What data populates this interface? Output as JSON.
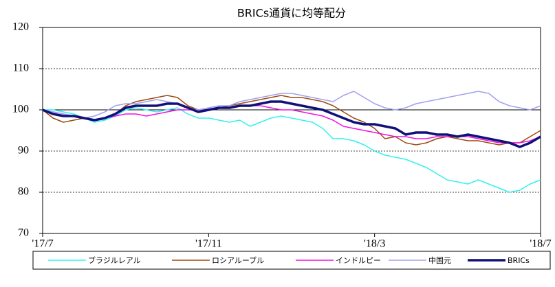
{
  "chart_data": {
    "type": "line",
    "title": "BRICs通貨に均等配分",
    "x": [
      0,
      0.25,
      0.5,
      0.75,
      1,
      1.25,
      1.5,
      1.75,
      2,
      2.25,
      2.5,
      2.75,
      3,
      3.25,
      3.5,
      3.75,
      4,
      4.25,
      4.5,
      4.75,
      5,
      5.25,
      5.5,
      5.75,
      6,
      6.25,
      6.5,
      6.75,
      7,
      7.25,
      7.5,
      7.75,
      8,
      8.25,
      8.5,
      8.75,
      9,
      9.25,
      9.5,
      9.75,
      10,
      10.25,
      10.5,
      10.75,
      11,
      11.25,
      11.5,
      11.75,
      12
    ],
    "xlim": [
      0,
      12
    ],
    "xticks": [
      {
        "value": 0,
        "label": "'17/7"
      },
      {
        "value": 4,
        "label": "'17/11"
      },
      {
        "value": 8,
        "label": "'18/3"
      },
      {
        "value": 12,
        "label": "'18/7"
      }
    ],
    "ylim": [
      70,
      120
    ],
    "yticks": [
      70,
      80,
      90,
      100,
      110,
      120
    ],
    "grid": true,
    "hline": 100,
    "legend": "bottom",
    "series": [
      {
        "name": "ブラジルレアル",
        "color": "#33f0f0",
        "line_width": 1.5,
        "values": [
          100,
          100,
          99.5,
          99,
          98,
          97,
          97.5,
          98.5,
          100,
          100.5,
          100,
          99.5,
          100,
          100.5,
          99,
          98,
          98,
          97.5,
          97,
          97.5,
          96,
          97,
          98,
          98.5,
          98,
          97.5,
          97,
          95.5,
          93,
          93,
          92.5,
          91.5,
          90,
          89,
          88.5,
          88,
          87,
          86,
          84.5,
          83,
          82.5,
          82,
          83,
          82,
          81,
          80,
          80.5,
          82,
          83
        ]
      },
      {
        "name": "ロシアルーブル",
        "color": "#9c4a10",
        "line_width": 1.5,
        "values": [
          100,
          98,
          97,
          97.5,
          98,
          97.5,
          98,
          99,
          101,
          102,
          102.5,
          103,
          103.5,
          103,
          101,
          100,
          100,
          100.5,
          101,
          101.5,
          102,
          102.5,
          103,
          103.5,
          103,
          103,
          102.5,
          102,
          101,
          99.5,
          98,
          97,
          95.5,
          93,
          93.5,
          92,
          91.5,
          92,
          93,
          93.5,
          93,
          92.5,
          92.5,
          92,
          91.5,
          92,
          92,
          93.5,
          95
        ]
      },
      {
        "name": "インドルピー",
        "color": "#f010e0",
        "line_width": 1.5,
        "values": [
          100,
          99.5,
          99,
          98.5,
          98,
          97.5,
          98,
          98.5,
          99,
          99,
          98.5,
          99,
          99.5,
          100,
          100,
          100,
          100,
          100.5,
          100.5,
          101,
          101,
          101,
          100.5,
          100,
          100,
          99.5,
          99,
          98.5,
          97.5,
          96,
          95.5,
          95,
          94.5,
          94,
          93.5,
          93.5,
          93,
          93,
          93.5,
          93.5,
          93.5,
          93.5,
          93,
          92.5,
          92,
          92,
          92,
          92.5,
          93.5
        ]
      },
      {
        "name": "中国元",
        "color": "#a0a0f0",
        "line_width": 1.5,
        "values": [
          100,
          99.5,
          99,
          98.5,
          98,
          98.5,
          99.5,
          101,
          101.5,
          101.5,
          102,
          102.5,
          102,
          101.5,
          100.5,
          100,
          100.5,
          101,
          101,
          102,
          102.5,
          103,
          103.5,
          104,
          104,
          103.5,
          103,
          102.5,
          102,
          103.5,
          104.5,
          103,
          101.5,
          100.5,
          100,
          100.5,
          101.5,
          102,
          102.5,
          103,
          103.5,
          104,
          104.5,
          104,
          102,
          101,
          100.5,
          100,
          101
        ]
      },
      {
        "name": "BRICs",
        "color": "#10107a",
        "line_width": 3.5,
        "values": [
          100,
          99,
          98.5,
          98.5,
          98,
          97.5,
          98,
          99,
          100.5,
          101,
          101,
          101,
          101.5,
          101.5,
          100.5,
          99.5,
          100,
          100.5,
          100.5,
          101,
          101,
          101.5,
          102,
          102,
          101.5,
          101,
          100.5,
          100,
          99,
          98,
          97,
          96.5,
          96.5,
          96,
          95.5,
          94,
          94.5,
          94.5,
          94,
          94,
          93.5,
          94,
          93.5,
          93,
          92.5,
          92,
          91,
          92,
          93.5
        ]
      }
    ]
  }
}
